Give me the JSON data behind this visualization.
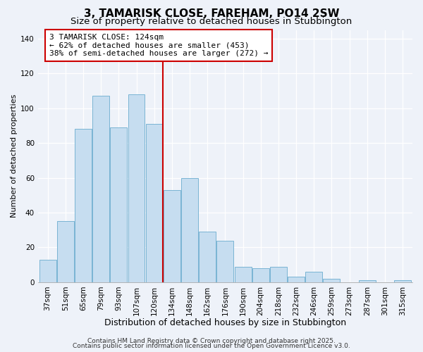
{
  "title": "3, TAMARISK CLOSE, FAREHAM, PO14 2SW",
  "subtitle": "Size of property relative to detached houses in Stubbington",
  "xlabel": "Distribution of detached houses by size in Stubbington",
  "ylabel": "Number of detached properties",
  "categories": [
    "37sqm",
    "51sqm",
    "65sqm",
    "79sqm",
    "93sqm",
    "107sqm",
    "120sqm",
    "134sqm",
    "148sqm",
    "162sqm",
    "176sqm",
    "190sqm",
    "204sqm",
    "218sqm",
    "232sqm",
    "246sqm",
    "259sqm",
    "273sqm",
    "287sqm",
    "301sqm",
    "315sqm"
  ],
  "values": [
    13,
    35,
    88,
    107,
    89,
    108,
    91,
    53,
    60,
    29,
    24,
    9,
    8,
    9,
    3,
    6,
    2,
    0,
    1,
    0,
    1
  ],
  "bar_color": "#c6ddf0",
  "bar_edge_color": "#7ab4d4",
  "vline_x_index": 6,
  "vline_color": "#cc0000",
  "annotation_title": "3 TAMARISK CLOSE: 124sqm",
  "annotation_line1": "← 62% of detached houses are smaller (453)",
  "annotation_line2": "38% of semi-detached houses are larger (272) →",
  "annotation_box_color": "white",
  "annotation_box_edge": "#cc0000",
  "ylim": [
    0,
    145
  ],
  "yticks": [
    0,
    20,
    40,
    60,
    80,
    100,
    120,
    140
  ],
  "footer1": "Contains HM Land Registry data © Crown copyright and database right 2025.",
  "footer2": "Contains public sector information licensed under the Open Government Licence v3.0.",
  "background_color": "#eef2f9",
  "title_fontsize": 11,
  "subtitle_fontsize": 9.5,
  "xlabel_fontsize": 9,
  "ylabel_fontsize": 8,
  "tick_fontsize": 7.5,
  "annotation_fontsize": 8,
  "footer_fontsize": 6.5
}
